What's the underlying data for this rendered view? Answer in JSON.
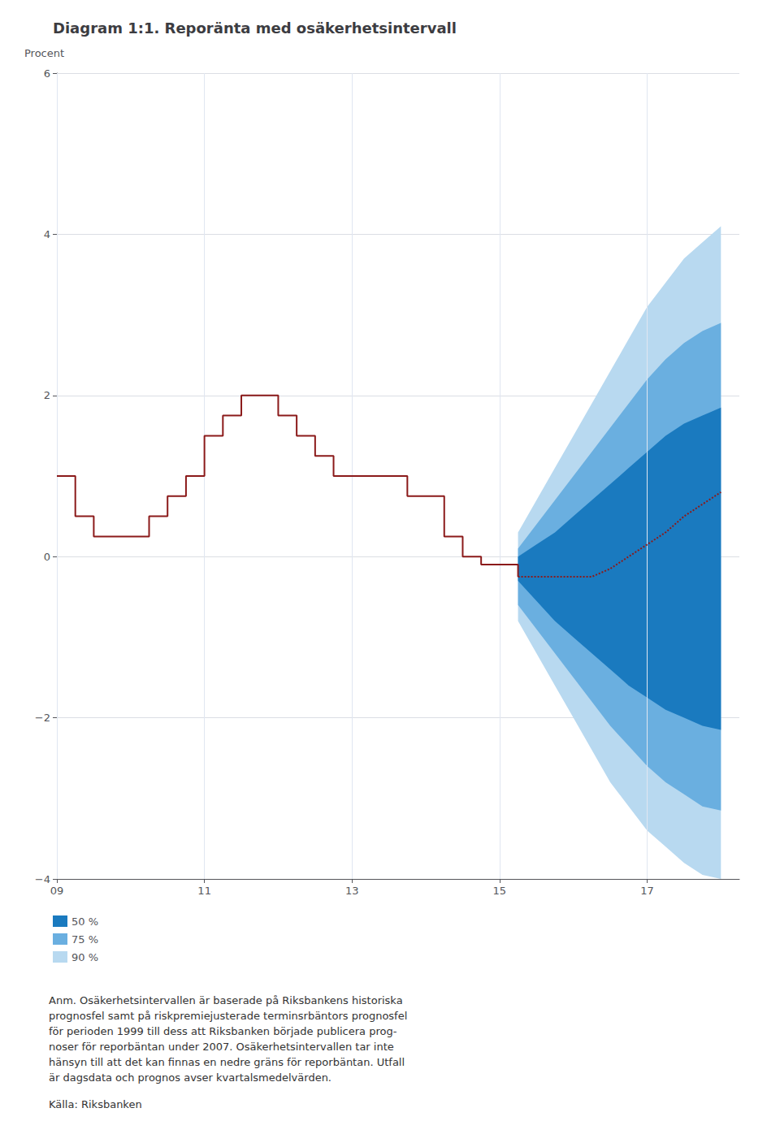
{
  "chart_data": {
    "type": "line",
    "title": "Diagram 1:1. Reporänta med osäkerhetsintervall",
    "y_label": "Procent",
    "xlim": [
      2009.0,
      2018.25
    ],
    "ylim": [
      -4,
      6
    ],
    "xticks": [
      {
        "value": 2009,
        "label": "09"
      },
      {
        "value": 2011,
        "label": "11"
      },
      {
        "value": 2013,
        "label": "13"
      },
      {
        "value": 2015,
        "label": "15"
      },
      {
        "value": 2017,
        "label": "17"
      }
    ],
    "yticks": [
      {
        "value": -4,
        "label": "−4"
      },
      {
        "value": -2,
        "label": "−2"
      },
      0,
      2,
      4,
      6
    ],
    "grid": true,
    "legend": "lower left",
    "series": [
      {
        "name": "90 %",
        "type": "band",
        "color": "#b8d9f0",
        "x": [
          2015.25,
          2015.5,
          2015.75,
          2016.0,
          2016.25,
          2016.5,
          2016.75,
          2017.0,
          2017.25,
          2017.5,
          2017.75,
          2018.0
        ],
        "lower": [
          -0.8,
          -1.2,
          -1.6,
          -2.0,
          -2.4,
          -2.8,
          -3.1,
          -3.4,
          -3.6,
          -3.8,
          -3.95,
          -4.0
        ],
        "upper": [
          0.3,
          0.7,
          1.1,
          1.5,
          1.9,
          2.3,
          2.7,
          3.1,
          3.4,
          3.7,
          3.9,
          4.1
        ]
      },
      {
        "name": "75 %",
        "type": "band",
        "color": "#6aafe0",
        "x": [
          2015.25,
          2015.5,
          2015.75,
          2016.0,
          2016.25,
          2016.5,
          2016.75,
          2017.0,
          2017.25,
          2017.5,
          2017.75,
          2018.0
        ],
        "lower": [
          -0.6,
          -0.9,
          -1.2,
          -1.5,
          -1.8,
          -2.1,
          -2.35,
          -2.6,
          -2.8,
          -2.95,
          -3.1,
          -3.15
        ],
        "upper": [
          0.1,
          0.4,
          0.7,
          1.0,
          1.3,
          1.6,
          1.9,
          2.2,
          2.45,
          2.65,
          2.8,
          2.9
        ]
      },
      {
        "name": "50 %",
        "type": "band",
        "color": "#1a7abf",
        "x": [
          2015.25,
          2015.5,
          2015.75,
          2016.0,
          2016.25,
          2016.5,
          2016.75,
          2017.0,
          2017.25,
          2017.5,
          2017.75,
          2018.0
        ],
        "lower": [
          -0.3,
          -0.55,
          -0.8,
          -1.0,
          -1.2,
          -1.4,
          -1.6,
          -1.75,
          -1.9,
          -2.0,
          -2.1,
          -2.15
        ],
        "upper": [
          0.0,
          0.15,
          0.3,
          0.5,
          0.7,
          0.9,
          1.1,
          1.3,
          1.5,
          1.65,
          1.75,
          1.85
        ]
      },
      {
        "type": "step",
        "color": "#8b1a1a",
        "line_style": "solid",
        "x": [
          2009.0,
          2009.25,
          2009.5,
          2009.75,
          2010.0,
          2010.25,
          2010.5,
          2010.75,
          2011.0,
          2011.25,
          2011.5,
          2011.75,
          2012.0,
          2012.25,
          2012.5,
          2012.75,
          2013.0,
          2013.25,
          2013.5,
          2013.75,
          2014.0,
          2014.25,
          2014.5,
          2014.75,
          2015.0,
          2015.25
        ],
        "values": [
          1.0,
          0.5,
          0.25,
          0.25,
          0.25,
          0.5,
          0.75,
          1.0,
          1.5,
          1.75,
          2.0,
          2.0,
          1.75,
          1.5,
          1.25,
          1.0,
          1.0,
          1.0,
          1.0,
          0.75,
          0.75,
          0.25,
          0.0,
          -0.1,
          -0.1,
          -0.25
        ]
      },
      {
        "type": "line",
        "color": "#8b1a1a",
        "line_style": "dotted",
        "x": [
          2015.25,
          2015.5,
          2015.75,
          2016.0,
          2016.25,
          2016.5,
          2016.75,
          2017.0,
          2017.25,
          2017.5,
          2017.75,
          2018.0
        ],
        "values": [
          -0.25,
          -0.25,
          -0.25,
          -0.25,
          -0.25,
          -0.15,
          0.0,
          0.15,
          0.3,
          0.5,
          0.65,
          0.8
        ]
      }
    ],
    "annotations": [
      "Anm. Osäkerhetsintervallen är baserade på Riksbankens historiska\nprognosfel samt på riskpremiejusterade terminsrbäntors prognosfel\nför perioden 1999 till dess att Riksbanken började publicera prog-\nnoser för reporbäntan under 2007. Osäkerhetsintervallen tar inte\nhänsyn till att det kan finnas en nedre gräns för reporbäntan. Utfall\när dagsdata och prognos avser kvartalsmedelvärden.",
      "Källa: Riksbanken"
    ]
  }
}
